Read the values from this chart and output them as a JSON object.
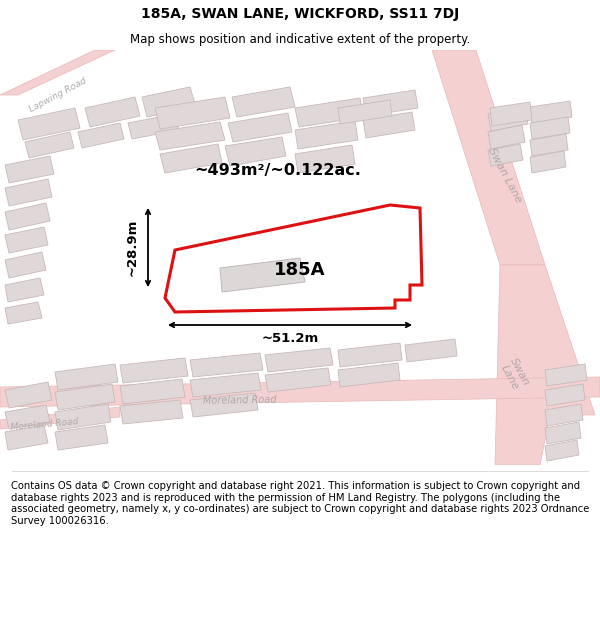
{
  "title": "185A, SWAN LANE, WICKFORD, SS11 7DJ",
  "subtitle": "Map shows position and indicative extent of the property.",
  "footer": "Contains OS data © Crown copyright and database right 2021. This information is subject to Crown copyright and database rights 2023 and is reproduced with the permission of HM Land Registry. The polygons (including the associated geometry, namely x, y co-ordinates) are subject to Crown copyright and database rights 2023 Ordnance Survey 100026316.",
  "bg_color": "#f2eded",
  "map_bg": "#f2eded",
  "road_fill": "#f5d0d0",
  "road_edge": "#e8b8b8",
  "building_fill": "#e0d8d8",
  "building_stroke": "#c8b8b8",
  "highlight_fill": "#ffffff",
  "highlight_stroke": "#dd1111",
  "area_text": "~493m²/~0.122ac.",
  "label_185A": "185A",
  "dim_width": "~51.2m",
  "dim_height": "~28.9m",
  "title_fontsize": 10,
  "subtitle_fontsize": 8.5,
  "footer_fontsize": 7.2,
  "road_label_color": "#b0a8a8",
  "swan_lane_label_color": "#c0b8b8"
}
